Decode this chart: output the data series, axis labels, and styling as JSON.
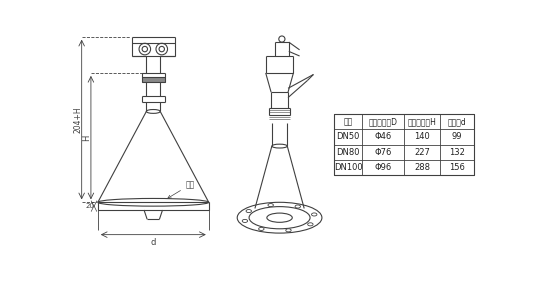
{
  "bg_color": "#ffffff",
  "line_color": "#404040",
  "table_header": [
    "法兰",
    "喇叭口直径D",
    "喇叭口高度H",
    "四氟盘d"
  ],
  "table_rows": [
    [
      "DN50",
      "Φ46",
      "140",
      "99"
    ],
    [
      "DN80",
      "Φ76",
      "227",
      "132"
    ],
    [
      "DN100",
      "Φ96",
      "288",
      "156"
    ]
  ],
  "dim_label_204H": "204+H",
  "dim_label_H": "H",
  "dim_label_20": "20",
  "dim_label_d": "d",
  "dim_label_flange": "法兰"
}
